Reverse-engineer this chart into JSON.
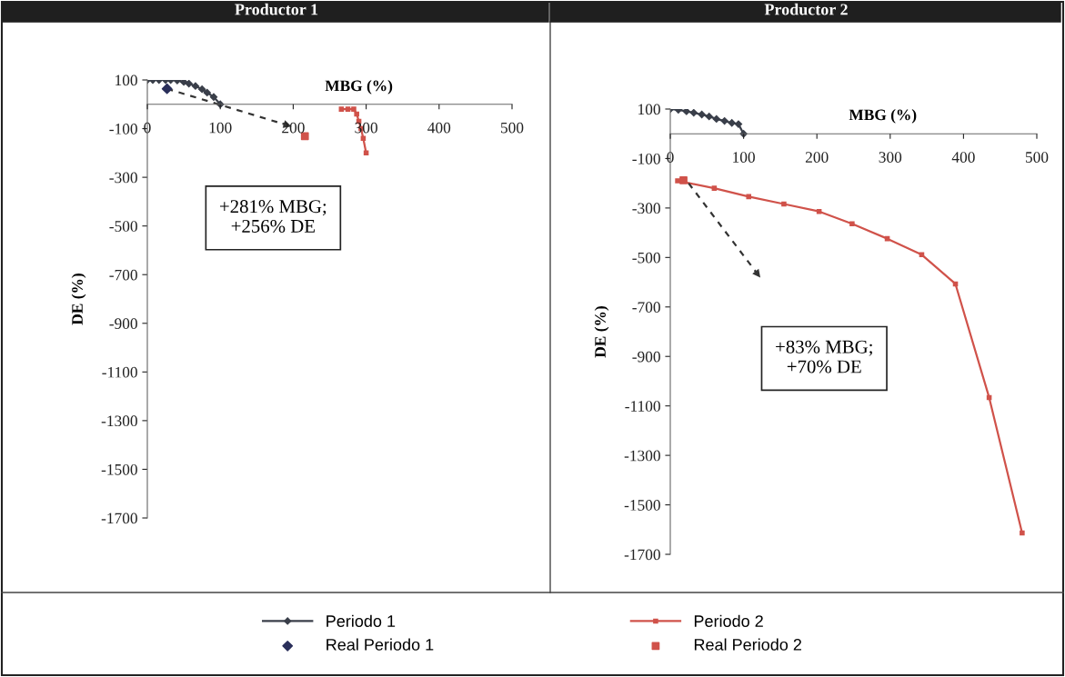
{
  "chart_data": [
    {
      "type": "line",
      "title": "Productor 1",
      "xlabel": "MBG (%)",
      "ylabel": "DE (%)",
      "xlim": [
        0,
        500
      ],
      "xticks": [
        0,
        100,
        200,
        300,
        400,
        500
      ],
      "ylim": [
        -1700,
        100
      ],
      "yticks": [
        100,
        -100,
        -300,
        -500,
        -700,
        -900,
        -1100,
        -1300,
        -1500,
        -1700
      ],
      "grid": false,
      "legend": "bottom",
      "annotations": [
        "+281% MBG;\n+256% DE"
      ],
      "series": [
        {
          "name": "Periodo 1",
          "type": "line",
          "color": "#3a3f4a",
          "marker": "diamond",
          "x": [
            0,
            7.5,
            16,
            25,
            32,
            41,
            50,
            57,
            66,
            75,
            82,
            91,
            100
          ],
          "values": [
            100,
            100,
            100,
            100,
            100,
            98,
            92,
            85,
            75,
            62,
            48,
            30,
            0
          ]
        },
        {
          "name": "Periodo 2",
          "type": "line",
          "color": "#d0524a",
          "marker": "square",
          "x": [
            266,
            275,
            283,
            287,
            290,
            293,
            296,
            300
          ],
          "values": [
            -20,
            -20,
            -20,
            -40,
            -70,
            -100,
            -140,
            -200
          ]
        },
        {
          "name": "Real Periodo 1",
          "type": "scatter",
          "color": "#2a2f5a",
          "marker": "diamond",
          "x": [
            27
          ],
          "values": [
            64
          ]
        },
        {
          "name": "Real Periodo 2",
          "type": "scatter",
          "color": "#d0524a",
          "marker": "square",
          "x": [
            216
          ],
          "values": [
            -131
          ]
        },
        {
          "type": "line",
          "color": "#333333",
          "line_style": "dashed",
          "x": [
            27,
            201
          ],
          "values": [
            64,
            -94
          ]
        }
      ]
    },
    {
      "type": "line",
      "title": "Productor 2",
      "xlabel": "MBG (%)",
      "ylabel": "DE (%)",
      "xlim": [
        0,
        500
      ],
      "xticks": [
        0,
        100,
        200,
        300,
        400,
        500
      ],
      "ylim": [
        -1700,
        100
      ],
      "yticks": [
        100,
        -100,
        -300,
        -500,
        -700,
        -900,
        -1100,
        -1300,
        -1500,
        -1700
      ],
      "grid": false,
      "legend": "bottom",
      "annotations": [
        "+83% MBG;\n+70% DE"
      ],
      "series": [
        {
          "name": "Periodo 1",
          "type": "line",
          "color": "#3a3f4a",
          "marker": "diamond",
          "x": [
            0,
            11,
            22,
            32,
            43,
            53,
            63,
            74,
            84,
            93,
            100
          ],
          "values": [
            100,
            97,
            91,
            85,
            78,
            70,
            60,
            52,
            44,
            39,
            0
          ]
        },
        {
          "name": "Periodo 2",
          "type": "line",
          "color": "#d0524a",
          "marker": "square",
          "x": [
            10,
            60,
            107,
            155,
            203,
            248,
            296,
            343,
            389,
            435,
            480
          ],
          "values": [
            -190,
            -220,
            -254,
            -284,
            -314,
            -364,
            -424,
            -489,
            -607,
            -1066,
            -1614
          ]
        },
        {
          "name": "Real Periodo 2",
          "type": "scatter",
          "color": "#d0524a",
          "marker": "square",
          "x": [
            18
          ],
          "values": [
            -188
          ]
        },
        {
          "type": "line",
          "color": "#333333",
          "line_style": "dashed",
          "x": [
            25,
            125
          ],
          "values": [
            -200,
            -590
          ]
        }
      ]
    }
  ]
}
